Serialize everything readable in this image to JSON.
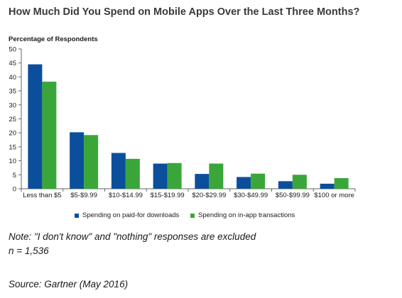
{
  "chart_data": {
    "type": "bar",
    "title": "How Much Did You Spend on Mobile Apps Over the Last Three Months?",
    "ylabel": "Percentage of Respondents",
    "xlabel": "",
    "ylim": [
      0,
      50
    ],
    "yticks": [
      0,
      5,
      10,
      15,
      20,
      25,
      30,
      35,
      40,
      45,
      50
    ],
    "grid": false,
    "legend_position": "bottom",
    "categories": [
      "Less than $5",
      "$5-$9.99",
      "$10-$14.99",
      "$15-$19.99",
      "$20-$29.99",
      "$30-$49.99",
      "$50-$99.99",
      "$100 or more"
    ],
    "series": [
      {
        "name": "Spending on paid-for downloads",
        "color": "#0b4f9c",
        "values": [
          44.5,
          20.2,
          12.8,
          9.0,
          5.3,
          4.2,
          2.7,
          1.8
        ]
      },
      {
        "name": "Spending on in-app transactions",
        "color": "#3aa63a",
        "values": [
          38.3,
          19.2,
          10.7,
          9.2,
          9.0,
          5.4,
          5.0,
          3.8
        ]
      }
    ]
  },
  "notes": {
    "note": "Note: \"I don't know\" and \"nothing\" responses are excluded",
    "n": "n = 1,536",
    "source": "Source: Gartner (May 2016)"
  }
}
